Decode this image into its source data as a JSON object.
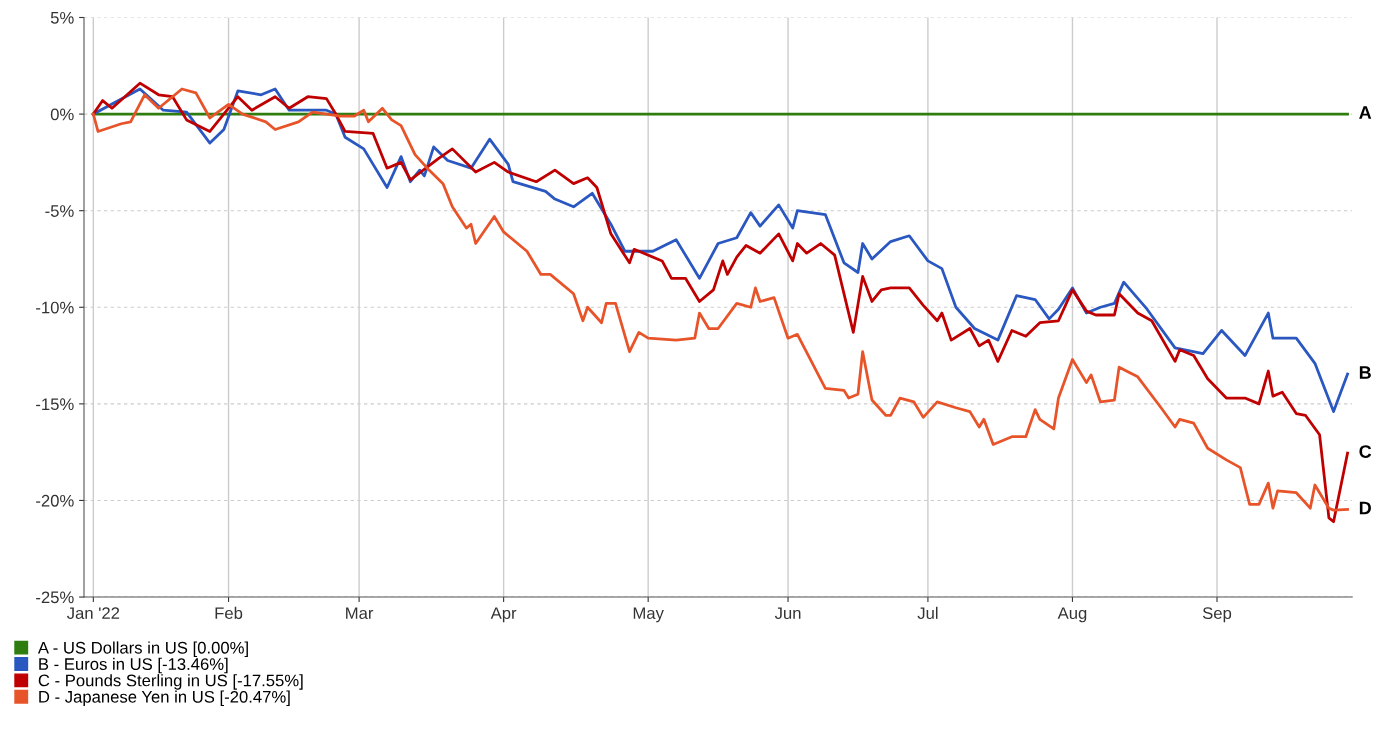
{
  "chart_data": {
    "type": "line",
    "xlim": [
      "2022-01-01",
      "2022-09-30"
    ],
    "xticks": [
      {
        "value": "2022-01-03",
        "label": "Jan '22"
      },
      {
        "value": "2022-02-01",
        "label": "Feb"
      },
      {
        "value": "2022-03-01",
        "label": "Mar"
      },
      {
        "value": "2022-04-01",
        "label": "Apr"
      },
      {
        "value": "2022-05-02",
        "label": "May"
      },
      {
        "value": "2022-06-01",
        "label": "Jun"
      },
      {
        "value": "2022-07-01",
        "label": "Jul"
      },
      {
        "value": "2022-08-01",
        "label": "Aug"
      },
      {
        "value": "2022-09-01",
        "label": "Sep"
      }
    ],
    "ylim": [
      -25,
      5
    ],
    "yticks": [
      {
        "value": 5,
        "label": "5%"
      },
      {
        "value": 0,
        "label": "0%"
      },
      {
        "value": -5,
        "label": "-5%"
      },
      {
        "value": -10,
        "label": "-10%"
      },
      {
        "value": -15,
        "label": "-15%"
      },
      {
        "value": -20,
        "label": "-20%"
      },
      {
        "value": -25,
        "label": "-25%"
      }
    ],
    "grid": true,
    "legend": "bottom left",
    "marker": "none",
    "line_style": "solid",
    "annotations": [
      {
        "text": "A",
        "x": "2022-09-29",
        "y": 0
      },
      {
        "text": "B",
        "x": "2022-09-29",
        "y": -13.46
      },
      {
        "text": "C",
        "x": "2022-09-29",
        "y": -17.55
      },
      {
        "text": "D",
        "x": "2022-09-29",
        "y": -20.47
      }
    ],
    "series": [
      {
        "name": "A - US Dollars in US [0.00%]",
        "color": "#2e7d0e",
        "x": [
          "2022-01-03",
          "2022-09-29"
        ],
        "values": [
          0,
          0
        ]
      },
      {
        "name": "B - Euros in US [-13.46%]",
        "color": "#2a57c0",
        "x": [
          "2022-01-03",
          "2022-01-13",
          "2022-01-18",
          "2022-01-23",
          "2022-01-28",
          "2022-01-31",
          "2022-02-03",
          "2022-02-08",
          "2022-02-11",
          "2022-02-14",
          "2022-02-22",
          "2022-02-24",
          "2022-02-26",
          "2022-03-02",
          "2022-03-07",
          "2022-03-10",
          "2022-03-12",
          "2022-03-14",
          "2022-03-15",
          "2022-03-17",
          "2022-03-20",
          "2022-03-25",
          "2022-03-29",
          "2022-04-02",
          "2022-04-03",
          "2022-04-10",
          "2022-04-12",
          "2022-04-16",
          "2022-04-20",
          "2022-04-24",
          "2022-04-27",
          "2022-05-03",
          "2022-05-08",
          "2022-05-13",
          "2022-05-17",
          "2022-05-21",
          "2022-05-24",
          "2022-05-26",
          "2022-05-30",
          "2022-06-02",
          "2022-06-03",
          "2022-06-09",
          "2022-06-13",
          "2022-06-16",
          "2022-06-17",
          "2022-06-19",
          "2022-06-23",
          "2022-06-27",
          "2022-07-01",
          "2022-07-04",
          "2022-07-07",
          "2022-07-11",
          "2022-07-16",
          "2022-07-20",
          "2022-07-24",
          "2022-07-27",
          "2022-07-29",
          "2022-08-01",
          "2022-08-04",
          "2022-08-07",
          "2022-08-10",
          "2022-08-12",
          "2022-08-17",
          "2022-08-23",
          "2022-08-29",
          "2022-09-02",
          "2022-09-07",
          "2022-09-12",
          "2022-09-13",
          "2022-09-18",
          "2022-09-22",
          "2022-09-26",
          "2022-09-29"
        ],
        "values": [
          0,
          1.3,
          0.2,
          0.1,
          -1.5,
          -0.8,
          1.2,
          1.0,
          1.3,
          0.2,
          0.2,
          0,
          -1.2,
          -1.8,
          -3.8,
          -2.2,
          -3.5,
          -2.9,
          -3.2,
          -1.7,
          -2.4,
          -2.8,
          -1.3,
          -2.6,
          -3.5,
          -4.0,
          -4.4,
          -4.8,
          -4.1,
          -5.7,
          -7.1,
          -7.1,
          -6.5,
          -8.5,
          -6.7,
          -6.4,
          -5.1,
          -5.8,
          -4.7,
          -5.9,
          -5.0,
          -5.2,
          -7.7,
          -8.2,
          -6.7,
          -7.5,
          -6.6,
          -6.3,
          -7.6,
          -8.0,
          -10.0,
          -11.1,
          -11.7,
          -9.4,
          -9.6,
          -10.6,
          -10.1,
          -9.0,
          -10.3,
          -10.0,
          -9.8,
          -8.7,
          -10.1,
          -12.1,
          -12.4,
          -11.2,
          -12.5,
          -10.3,
          -11.6,
          -11.6,
          -12.9,
          -15.4,
          -13.46
        ]
      },
      {
        "name": "C - Pounds Sterling in US [-17.55%]",
        "color": "#c00000",
        "x": [
          "2022-01-03",
          "2022-01-05",
          "2022-01-07",
          "2022-01-13",
          "2022-01-17",
          "2022-01-20",
          "2022-01-23",
          "2022-01-28",
          "2022-02-03",
          "2022-02-06",
          "2022-02-11",
          "2022-02-14",
          "2022-02-18",
          "2022-02-22",
          "2022-02-24",
          "2022-02-26",
          "2022-03-04",
          "2022-03-07",
          "2022-03-10",
          "2022-03-12",
          "2022-03-18",
          "2022-03-21",
          "2022-03-26",
          "2022-03-30",
          "2022-04-02",
          "2022-04-08",
          "2022-04-12",
          "2022-04-16",
          "2022-04-19",
          "2022-04-21",
          "2022-04-24",
          "2022-04-28",
          "2022-04-29",
          "2022-05-05",
          "2022-05-07",
          "2022-05-10",
          "2022-05-13",
          "2022-05-16",
          "2022-05-18",
          "2022-05-19",
          "2022-05-21",
          "2022-05-23",
          "2022-05-26",
          "2022-05-30",
          "2022-06-02",
          "2022-06-03",
          "2022-06-05",
          "2022-06-08",
          "2022-06-11",
          "2022-06-15",
          "2022-06-17",
          "2022-06-19",
          "2022-06-21",
          "2022-06-23",
          "2022-06-27",
          "2022-06-30",
          "2022-07-03",
          "2022-07-04",
          "2022-07-06",
          "2022-07-10",
          "2022-07-12",
          "2022-07-14",
          "2022-07-16",
          "2022-07-19",
          "2022-07-22",
          "2022-07-25",
          "2022-07-29",
          "2022-08-01",
          "2022-08-04",
          "2022-08-06",
          "2022-08-10",
          "2022-08-11",
          "2022-08-15",
          "2022-08-18",
          "2022-08-23",
          "2022-08-24",
          "2022-08-27",
          "2022-08-30",
          "2022-09-03",
          "2022-09-07",
          "2022-09-10",
          "2022-09-12",
          "2022-09-13",
          "2022-09-15",
          "2022-09-18",
          "2022-09-20",
          "2022-09-23",
          "2022-09-25",
          "2022-09-26",
          "2022-09-29"
        ],
        "values": [
          0,
          0.7,
          0.3,
          1.6,
          1.0,
          0.9,
          -0.3,
          -0.9,
          0.9,
          0.2,
          0.9,
          0.3,
          0.9,
          0.8,
          0,
          -0.9,
          -1.0,
          -2.8,
          -2.5,
          -3.4,
          -2.3,
          -1.8,
          -3.0,
          -2.5,
          -3.0,
          -3.5,
          -2.9,
          -3.6,
          -3.3,
          -3.8,
          -6.2,
          -7.7,
          -7.0,
          -7.6,
          -8.5,
          -8.5,
          -9.7,
          -9.1,
          -7.6,
          -8.3,
          -7.4,
          -6.8,
          -7.2,
          -6.2,
          -7.6,
          -6.7,
          -7.2,
          -6.7,
          -7.3,
          -11.3,
          -8.4,
          -9.7,
          -9.1,
          -9.0,
          -9.0,
          -9.9,
          -10.7,
          -10.3,
          -11.7,
          -11.1,
          -12.0,
          -11.7,
          -12.8,
          -11.2,
          -11.5,
          -10.8,
          -10.7,
          -9.1,
          -10.2,
          -10.4,
          -10.4,
          -9.3,
          -10.3,
          -10.7,
          -12.8,
          -12.2,
          -12.5,
          -13.7,
          -14.7,
          -14.7,
          -15.0,
          -13.3,
          -14.6,
          -14.4,
          -15.5,
          -15.6,
          -16.6,
          -20.9,
          -21.1,
          -17.55
        ]
      },
      {
        "name": "D - Japanese Yen in US [-20.47%]",
        "color": "#e8542a",
        "x": [
          "2022-01-03",
          "2022-01-04",
          "2022-01-09",
          "2022-01-11",
          "2022-01-14",
          "2022-01-17",
          "2022-01-22",
          "2022-01-25",
          "2022-01-28",
          "2022-02-01",
          "2022-02-04",
          "2022-02-09",
          "2022-02-11",
          "2022-02-16",
          "2022-02-19",
          "2022-02-25",
          "2022-02-28",
          "2022-03-02",
          "2022-03-03",
          "2022-03-06",
          "2022-03-08",
          "2022-03-10",
          "2022-03-13",
          "2022-03-16",
          "2022-03-19",
          "2022-03-21",
          "2022-03-24",
          "2022-03-25",
          "2022-03-26",
          "2022-03-30",
          "2022-04-01",
          "2022-04-06",
          "2022-04-09",
          "2022-04-11",
          "2022-04-16",
          "2022-04-18",
          "2022-04-19",
          "2022-04-22",
          "2022-04-23",
          "2022-04-25",
          "2022-04-28",
          "2022-04-30",
          "2022-05-02",
          "2022-05-08",
          "2022-05-12",
          "2022-05-13",
          "2022-05-15",
          "2022-05-17",
          "2022-05-21",
          "2022-05-24",
          "2022-05-25",
          "2022-05-26",
          "2022-05-29",
          "2022-06-01",
          "2022-06-03",
          "2022-06-09",
          "2022-06-13",
          "2022-06-14",
          "2022-06-16",
          "2022-06-17",
          "2022-06-19",
          "2022-06-22",
          "2022-06-23",
          "2022-06-25",
          "2022-06-28",
          "2022-06-30",
          "2022-07-03",
          "2022-07-07",
          "2022-07-10",
          "2022-07-12",
          "2022-07-13",
          "2022-07-15",
          "2022-07-19",
          "2022-07-22",
          "2022-07-24",
          "2022-07-25",
          "2022-07-28",
          "2022-07-29",
          "2022-08-01",
          "2022-08-04",
          "2022-08-05",
          "2022-08-07",
          "2022-08-10",
          "2022-08-11",
          "2022-08-15",
          "2022-08-20",
          "2022-08-23",
          "2022-08-24",
          "2022-08-27",
          "2022-08-30",
          "2022-09-03",
          "2022-09-06",
          "2022-09-08",
          "2022-09-10",
          "2022-09-12",
          "2022-09-13",
          "2022-09-14",
          "2022-09-18",
          "2022-09-21",
          "2022-09-22",
          "2022-09-25",
          "2022-09-26",
          "2022-09-29"
        ],
        "values": [
          0,
          -0.9,
          -0.5,
          -0.4,
          1.0,
          0.3,
          1.3,
          1.1,
          -0.2,
          0.5,
          0,
          -0.4,
          -0.8,
          -0.4,
          0.1,
          -0.1,
          -0.1,
          0.2,
          -0.4,
          0.3,
          -0.3,
          -0.6,
          -2.1,
          -2.9,
          -3.6,
          -4.8,
          -5.9,
          -5.7,
          -6.7,
          -5.3,
          -6.1,
          -7.1,
          -8.3,
          -8.3,
          -9.3,
          -10.7,
          -10.0,
          -10.8,
          -9.8,
          -9.8,
          -12.3,
          -11.3,
          -11.6,
          -11.7,
          -11.6,
          -10.3,
          -11.1,
          -11.1,
          -9.8,
          -10.0,
          -9.0,
          -9.7,
          -9.5,
          -11.6,
          -11.4,
          -14.2,
          -14.3,
          -14.7,
          -14.5,
          -12.3,
          -14.8,
          -15.6,
          -15.6,
          -14.7,
          -14.9,
          -15.7,
          -14.9,
          -15.2,
          -15.4,
          -16.2,
          -15.8,
          -17.1,
          -16.7,
          -16.7,
          -15.3,
          -15.8,
          -16.3,
          -14.7,
          -12.7,
          -13.9,
          -13.5,
          -14.9,
          -14.8,
          -13.1,
          -13.6,
          -15.2,
          -16.2,
          -15.8,
          -16.0,
          -17.3,
          -17.9,
          -18.3,
          -20.2,
          -20.2,
          -19.1,
          -20.4,
          -19.5,
          -19.6,
          -20.4,
          -19.2,
          -20.4,
          -20.5,
          -20.47
        ]
      }
    ]
  }
}
